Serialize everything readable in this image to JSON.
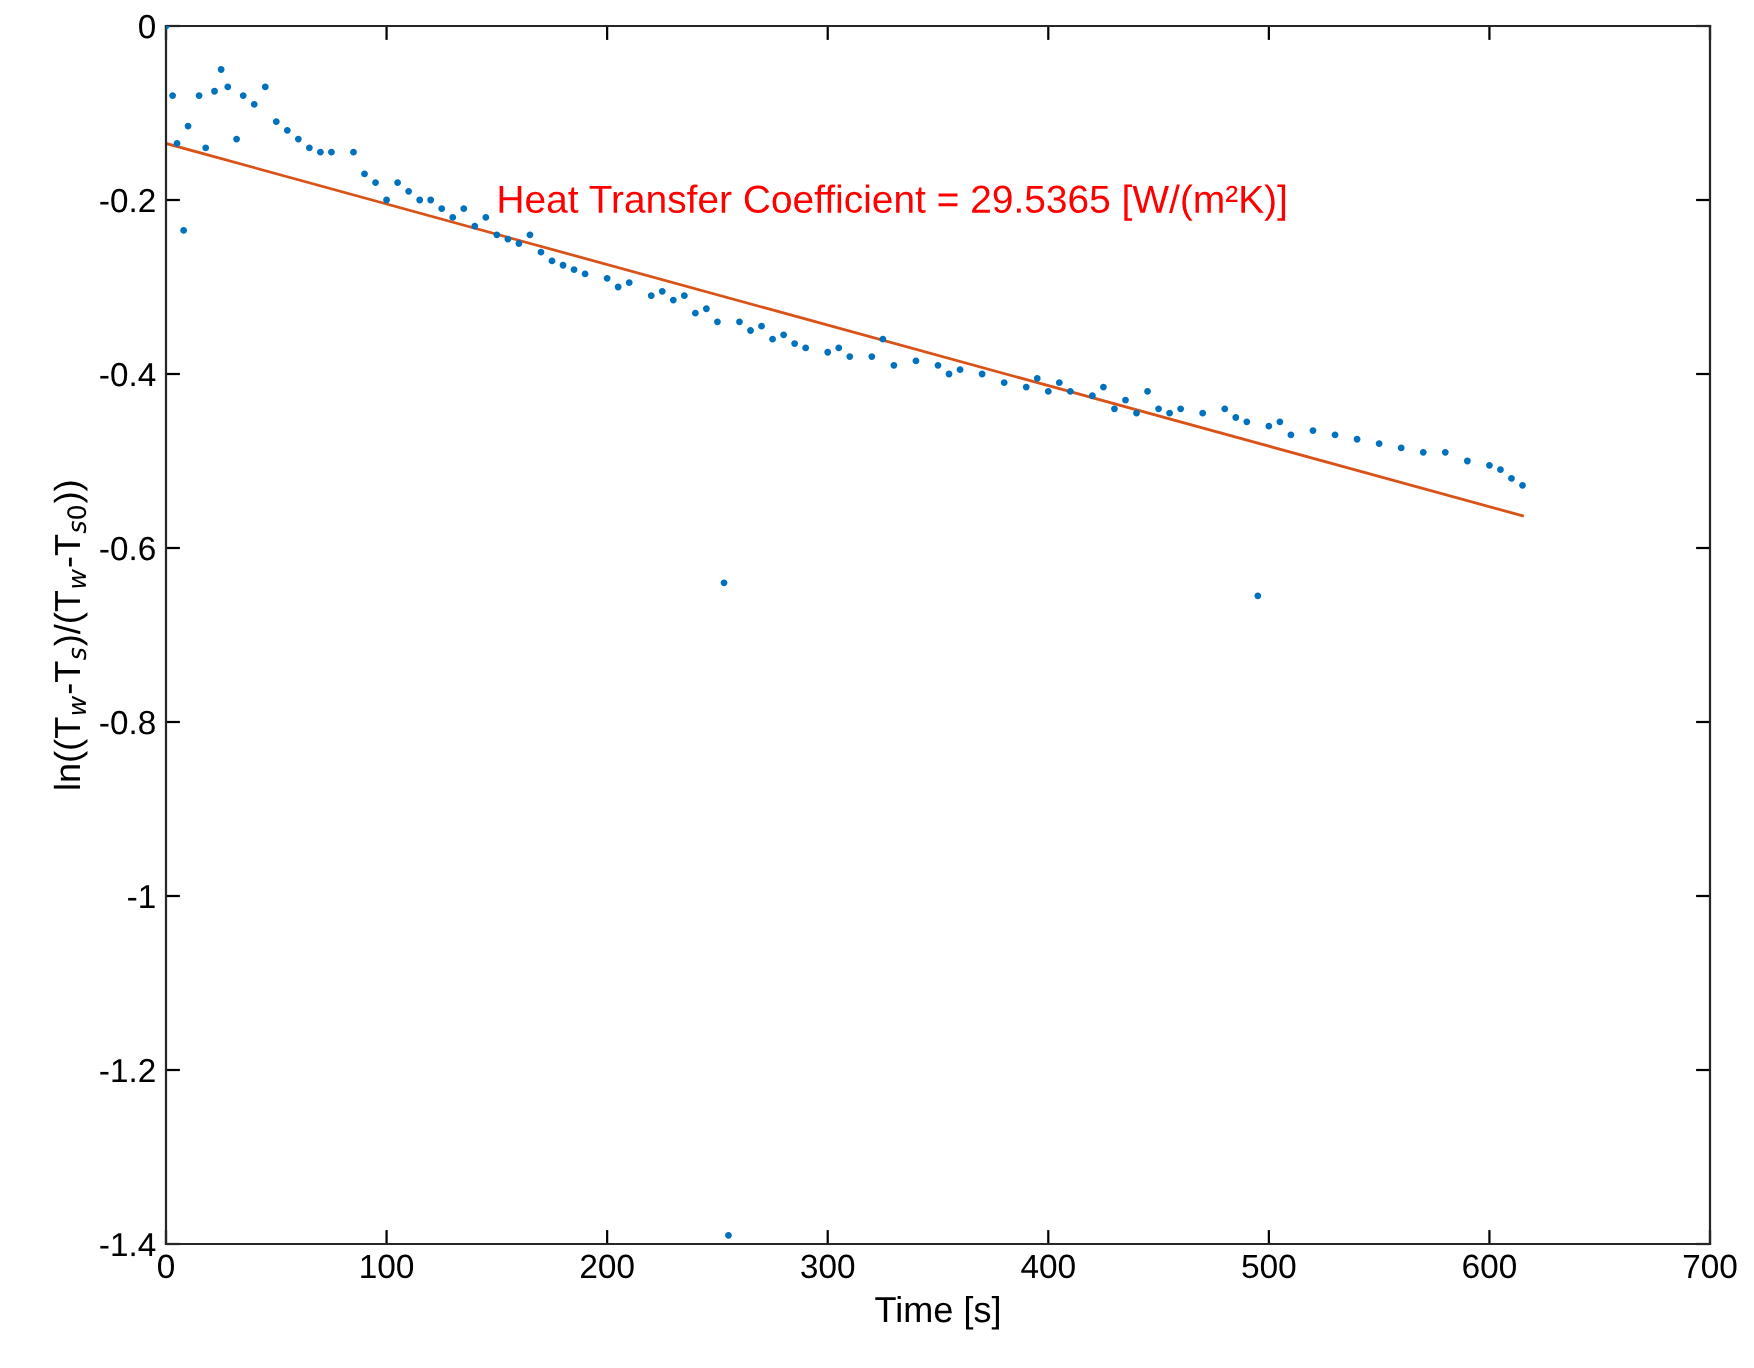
{
  "chart_data": {
    "type": "scatter",
    "xlabel": "Time [s]",
    "ylabel": "ln((T$_{w}$-T$_{s}$)/(T$_{w}$-T$_{s0}$))",
    "annotations": [
      "Heat Transfer Coefficient = 29.5365 [W/(m²K)]"
    ],
    "xlim": [
      0,
      700
    ],
    "xticks": [
      0,
      100,
      200,
      300,
      400,
      500,
      600,
      700
    ],
    "ylim": [
      -1.4,
      0
    ],
    "yticks": [
      -1.4,
      -1.2,
      -1,
      -0.8,
      -0.6,
      -0.4,
      -0.2,
      0
    ],
    "grid": false,
    "legend": false,
    "series": [
      {
        "marker": "circle",
        "color": "#0072bd",
        "x": [
          0,
          3,
          5,
          8,
          10,
          15,
          18,
          22,
          25,
          28,
          32,
          35,
          40,
          45,
          50,
          55,
          60,
          65,
          70,
          75,
          85,
          90,
          95,
          100,
          105,
          110,
          115,
          120,
          125,
          130,
          135,
          140,
          145,
          150,
          155,
          160,
          165,
          170,
          175,
          180,
          185,
          190,
          200,
          205,
          210,
          220,
          225,
          230,
          235,
          240,
          245,
          250,
          253,
          255,
          260,
          265,
          270,
          275,
          280,
          285,
          290,
          300,
          305,
          310,
          320,
          325,
          330,
          340,
          350,
          355,
          360,
          370,
          380,
          390,
          395,
          400,
          405,
          410,
          420,
          425,
          430,
          435,
          440,
          445,
          450,
          455,
          460,
          470,
          480,
          485,
          490,
          495,
          500,
          505,
          510,
          520,
          530,
          540,
          550,
          560,
          570,
          580,
          590,
          600,
          605,
          610,
          615
        ],
        "values": [
          0,
          -0.08,
          -0.135,
          -0.235,
          -0.115,
          -0.08,
          -0.14,
          -0.075,
          -0.05,
          -0.07,
          -0.13,
          -0.08,
          -0.09,
          -0.07,
          -0.11,
          -0.12,
          -0.13,
          -0.14,
          -0.145,
          -0.145,
          -0.145,
          -0.17,
          -0.18,
          -0.2,
          -0.18,
          -0.19,
          -0.2,
          -0.2,
          -0.21,
          -0.22,
          -0.21,
          -0.23,
          -0.22,
          -0.24,
          -0.245,
          -0.25,
          -0.24,
          -0.26,
          -0.27,
          -0.275,
          -0.28,
          -0.285,
          -0.29,
          -0.3,
          -0.295,
          -0.31,
          -0.305,
          -0.315,
          -0.31,
          -0.33,
          -0.325,
          -0.34,
          -0.64,
          -1.39,
          -0.34,
          -0.35,
          -0.345,
          -0.36,
          -0.355,
          -0.365,
          -0.37,
          -0.375,
          -0.37,
          -0.38,
          -0.38,
          -0.36,
          -0.39,
          -0.385,
          -0.39,
          -0.4,
          -0.395,
          -0.4,
          -0.41,
          -0.415,
          -0.405,
          -0.42,
          -0.41,
          -0.42,
          -0.425,
          -0.415,
          -0.44,
          -0.43,
          -0.445,
          -0.42,
          -0.44,
          -0.445,
          -0.44,
          -0.445,
          -0.44,
          -0.45,
          -0.455,
          -0.655,
          -0.46,
          -0.455,
          -0.47,
          -0.465,
          -0.47,
          -0.475,
          -0.48,
          -0.485,
          -0.49,
          -0.49,
          -0.5,
          -0.505,
          -0.51,
          -0.52,
          -0.528
        ]
      },
      {
        "type": "line",
        "color": "#d95319",
        "x": [
          0,
          615
        ],
        "values": [
          -0.135,
          -0.563
        ]
      }
    ]
  }
}
